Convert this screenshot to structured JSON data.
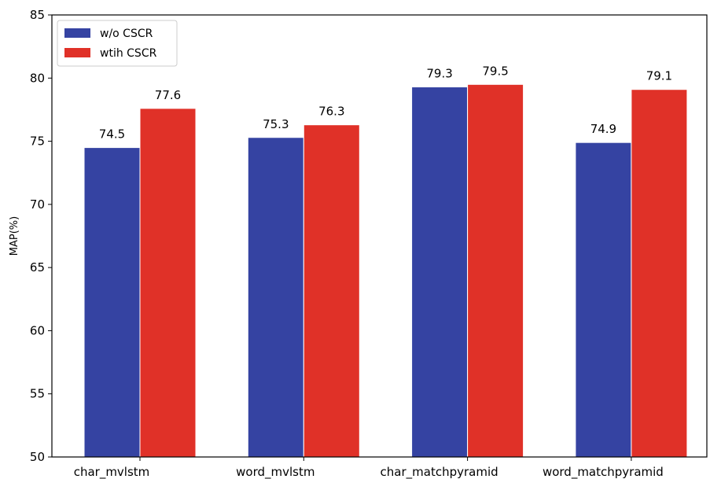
{
  "chart_data": {
    "type": "bar",
    "title": "",
    "xlabel": "",
    "ylabel": "MAP(%)",
    "ylim": [
      50,
      85
    ],
    "yticks": [
      50,
      55,
      60,
      65,
      70,
      75,
      80,
      85
    ],
    "grid": false,
    "legend_position": "top-left",
    "categories": [
      "char_mvlstm",
      "word_mvlstm",
      "char_matchpyramid",
      "word_matchpyramid"
    ],
    "series": [
      {
        "name": "w/o CSCR",
        "color": "#3543a2",
        "values": [
          74.5,
          75.3,
          79.3,
          74.9
        ]
      },
      {
        "name": "wtih CSCR",
        "color": "#e03128",
        "values": [
          77.6,
          76.3,
          79.5,
          79.1
        ]
      }
    ]
  }
}
